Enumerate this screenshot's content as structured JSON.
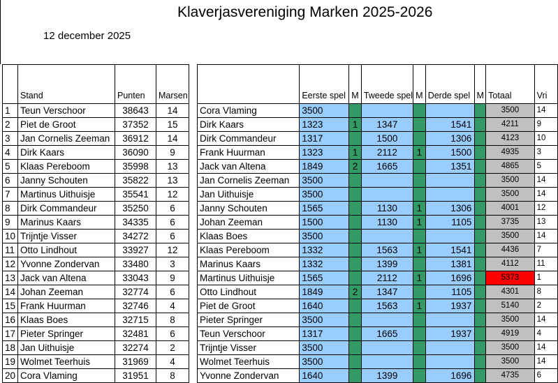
{
  "title": "Klaverjasvereniging Marken 2025-2026",
  "date": "12 december 2025",
  "standings": {
    "headers": {
      "stand": "Stand",
      "punten": "Punten",
      "marsen": "Marsen"
    },
    "rows": [
      {
        "pos": "1",
        "name": "Teun Verschoor",
        "punten": "38643",
        "marsen": "14"
      },
      {
        "pos": "2",
        "name": "Piet de Groot",
        "punten": "37352",
        "marsen": "15"
      },
      {
        "pos": "3",
        "name": "Jan Cornelis Zeeman",
        "punten": "36912",
        "marsen": "14"
      },
      {
        "pos": "4",
        "name": "Dirk Kaars",
        "punten": "36090",
        "marsen": "9"
      },
      {
        "pos": "5",
        "name": "Klaas Pereboom",
        "punten": "35998",
        "marsen": "13"
      },
      {
        "pos": "6",
        "name": "Janny Schouten",
        "punten": "35822",
        "marsen": "13"
      },
      {
        "pos": "7",
        "name": "Martinus Uithuisje",
        "punten": "35541",
        "marsen": "12"
      },
      {
        "pos": "8",
        "name": "Dirk Commandeur",
        "punten": "35250",
        "marsen": "6"
      },
      {
        "pos": "9",
        "name": "Marinus Kaars",
        "punten": "34335",
        "marsen": "6"
      },
      {
        "pos": "10",
        "name": "Trijntje Visser",
        "punten": "34272",
        "marsen": "6"
      },
      {
        "pos": "11",
        "name": "Otto Lindhout",
        "punten": "33927",
        "marsen": "12"
      },
      {
        "pos": "12",
        "name": "Yvonne Zondervan",
        "punten": "33480",
        "marsen": "3"
      },
      {
        "pos": "13",
        "name": "Jack van Altena",
        "punten": "33043",
        "marsen": "9"
      },
      {
        "pos": "14",
        "name": "Johan Zeeman",
        "punten": "32774",
        "marsen": "6"
      },
      {
        "pos": "15",
        "name": "Frank Huurman",
        "punten": "32746",
        "marsen": "4"
      },
      {
        "pos": "16",
        "name": "Klaas Boes",
        "punten": "32715",
        "marsen": "8"
      },
      {
        "pos": "17",
        "name": "Pieter Springer",
        "punten": "32481",
        "marsen": "6"
      },
      {
        "pos": "18",
        "name": "Jan Uithuisje",
        "punten": "32274",
        "marsen": "2"
      },
      {
        "pos": "19",
        "name": "Wolmet Teerhuis",
        "punten": "31969",
        "marsen": "4"
      },
      {
        "pos": "20",
        "name": "Cora Vlaming",
        "punten": "31951",
        "marsen": "8"
      }
    ]
  },
  "games": {
    "headers": {
      "eerste": "Eerste spel",
      "m1": "M",
      "tweede": "Tweede spel",
      "m2": "M",
      "derde": "Derde spel",
      "m3": "M",
      "totaal": "Totaal",
      "vrij": "Vri"
    },
    "highlight_color": "#ff0000",
    "rows": [
      {
        "name": "Cora Vlaming",
        "e": "3500",
        "m1": "",
        "t": "",
        "m2": "",
        "d": "",
        "m3": "",
        "tot": "3500",
        "v": "14"
      },
      {
        "name": "Dirk Kaars",
        "e": "1323",
        "m1": "1",
        "t": "1347",
        "m2": "",
        "d": "1541",
        "m3": "",
        "tot": "4211",
        "v": "9"
      },
      {
        "name": "Dirk Commandeur",
        "e": "1317",
        "m1": "",
        "t": "1500",
        "m2": "",
        "d": "1306",
        "m3": "",
        "tot": "4123",
        "v": "10"
      },
      {
        "name": "Frank Huurman",
        "e": "1323",
        "m1": "1",
        "t": "2112",
        "m2": "1",
        "d": "1500",
        "m3": "",
        "tot": "4935",
        "v": "3"
      },
      {
        "name": "Jack van Altena",
        "e": "1849",
        "m1": "2",
        "t": "1665",
        "m2": "",
        "d": "1351",
        "m3": "",
        "tot": "4865",
        "v": "5"
      },
      {
        "name": "Jan Cornelis Zeeman",
        "e": "3500",
        "m1": "",
        "t": "",
        "m2": "",
        "d": "",
        "m3": "",
        "tot": "3500",
        "v": "14"
      },
      {
        "name": "Jan Uithuisje",
        "e": "3500",
        "m1": "",
        "t": "",
        "m2": "",
        "d": "",
        "m3": "",
        "tot": "3500",
        "v": "14"
      },
      {
        "name": "Janny Schouten",
        "e": "1565",
        "m1": "",
        "t": "1130",
        "m2": "1",
        "d": "1306",
        "m3": "",
        "tot": "4001",
        "v": "12"
      },
      {
        "name": "Johan Zeeman",
        "e": "1500",
        "m1": "",
        "t": "1130",
        "m2": "1",
        "d": "1105",
        "m3": "",
        "tot": "3735",
        "v": "13"
      },
      {
        "name": "Klaas Boes",
        "e": "3500",
        "m1": "",
        "t": "",
        "m2": "",
        "d": "",
        "m3": "",
        "tot": "3500",
        "v": "14"
      },
      {
        "name": "Klaas Pereboom",
        "e": "1332",
        "m1": "",
        "t": "1563",
        "m2": "1",
        "d": "1541",
        "m3": "",
        "tot": "4436",
        "v": "7"
      },
      {
        "name": "Marinus Kaars",
        "e": "1332",
        "m1": "",
        "t": "1399",
        "m2": "",
        "d": "1381",
        "m3": "",
        "tot": "4112",
        "v": "11"
      },
      {
        "name": "Martinus Uithuisje",
        "e": "1565",
        "m1": "",
        "t": "2112",
        "m2": "1",
        "d": "1696",
        "m3": "",
        "tot": "5373",
        "v": "1",
        "highlight": true
      },
      {
        "name": "Otto Lindhout",
        "e": "1849",
        "m1": "2",
        "t": "1347",
        "m2": "",
        "d": "1105",
        "m3": "",
        "tot": "4301",
        "v": "8"
      },
      {
        "name": "Piet de Groot",
        "e": "1640",
        "m1": "",
        "t": "1563",
        "m2": "1",
        "d": "1937",
        "m3": "",
        "tot": "5140",
        "v": "2"
      },
      {
        "name": "Pieter Springer",
        "e": "3500",
        "m1": "",
        "t": "",
        "m2": "",
        "d": "",
        "m3": "",
        "tot": "3500",
        "v": "14"
      },
      {
        "name": "Teun Verschoor",
        "e": "1317",
        "m1": "",
        "t": "1665",
        "m2": "",
        "d": "1937",
        "m3": "",
        "tot": "4919",
        "v": "4"
      },
      {
        "name": "Trijntje Visser",
        "e": "3500",
        "m1": "",
        "t": "",
        "m2": "",
        "d": "",
        "m3": "",
        "tot": "3500",
        "v": "14"
      },
      {
        "name": "Wolmet Teerhuis",
        "e": "3500",
        "m1": "",
        "t": "",
        "m2": "",
        "d": "",
        "m3": "",
        "tot": "3500",
        "v": "14"
      },
      {
        "name": "Yvonne Zondervan",
        "e": "1640",
        "m1": "",
        "t": "1399",
        "m2": "",
        "d": "1696",
        "m3": "",
        "tot": "4735",
        "v": "6"
      }
    ]
  }
}
